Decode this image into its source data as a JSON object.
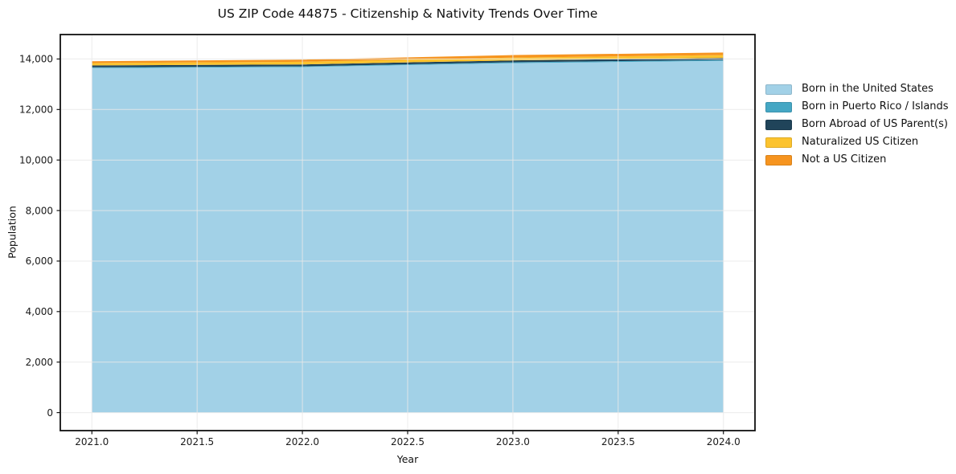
{
  "chart_data": {
    "type": "area",
    "stacked": true,
    "title": "US ZIP Code 44875 - Citizenship & Nativity Trends Over Time",
    "xlabel": "Year",
    "ylabel": "Population",
    "x": [
      2021,
      2022,
      2023,
      2024
    ],
    "series": [
      {
        "name": "Born in the United States",
        "color": "#a2d1e7",
        "values": [
          13640,
          13680,
          13835,
          13925
        ]
      },
      {
        "name": "Born in Puerto Rico / Islands",
        "color": "#45a7c4",
        "values": [
          30,
          30,
          35,
          35
        ]
      },
      {
        "name": "Born Abroad of US Parent(s)",
        "color": "#20445a",
        "values": [
          75,
          75,
          75,
          80
        ]
      },
      {
        "name": "Naturalized US Citizen",
        "color": "#fcc32e",
        "values": [
          95,
          105,
          110,
          115
        ]
      },
      {
        "name": "Not a US Citizen",
        "color": "#f6941f",
        "values": [
          70,
          85,
          100,
          100
        ]
      }
    ],
    "x_ticks": {
      "values": [
        2021.0,
        2021.5,
        2022.0,
        2022.5,
        2023.0,
        2023.5,
        2024.0
      ],
      "labels": [
        "2021.0",
        "2021.5",
        "2022.0",
        "2022.5",
        "2023.0",
        "2023.5",
        "2024.0"
      ]
    },
    "y_ticks": {
      "values": [
        0,
        2000,
        4000,
        6000,
        8000,
        10000,
        12000,
        14000
      ],
      "labels": [
        "0",
        "2,000",
        "4,000",
        "6,000",
        "8,000",
        "10,000",
        "12,000",
        "14,000"
      ]
    },
    "xlim": [
      2020.85,
      2024.15
    ],
    "ylim": [
      -713,
      14968
    ],
    "grid": true,
    "legend_position": "outside-right"
  },
  "style_colors": {
    "grid": "#e9e9e9",
    "spine": "#111111",
    "tick_text": "#1a1a1a"
  }
}
